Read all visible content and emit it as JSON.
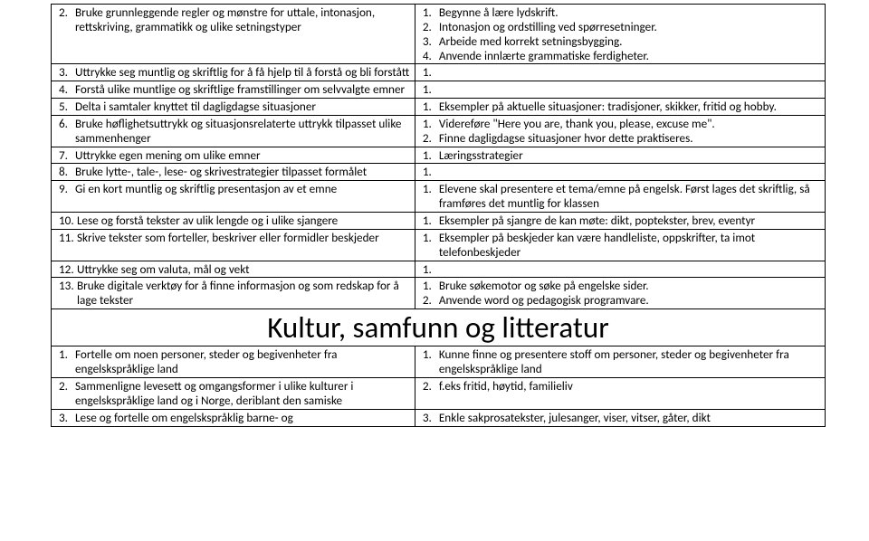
{
  "rows": [
    {
      "left": [
        {
          "n": "2.",
          "t": "Bruke grunnleggende regler og mønstre for uttale, intonasjon, rettskriving, grammatikk og ulike setningstyper"
        }
      ],
      "right": [
        {
          "n": "1.",
          "t": "Begynne å lære lydskrift."
        },
        {
          "n": "2.",
          "t": "Intonasjon og ordstilling ved spørresetninger."
        },
        {
          "n": "3.",
          "t": "Arbeide med korrekt setningsbygging."
        },
        {
          "n": "4.",
          "t": "Anvende innlærte grammatiske ferdigheter."
        }
      ]
    },
    {
      "left": [
        {
          "n": "3.",
          "t": "Uttrykke seg muntlig og skriftlig for å få hjelp til å forstå og bli forstått"
        }
      ],
      "right": [
        {
          "n": "1.",
          "t": ""
        }
      ]
    },
    {
      "left": [
        {
          "n": "4.",
          "t": "Forstå ulike muntlige og skriftlige framstillinger om selvvalgte emner"
        }
      ],
      "right": [
        {
          "n": "1.",
          "t": ""
        }
      ]
    },
    {
      "left": [
        {
          "n": "5.",
          "t": "Delta i samtaler knyttet til dagligdagse situasjoner"
        }
      ],
      "right": [
        {
          "n": "1.",
          "t": "Eksempler på aktuelle situasjoner: tradisjoner, skikker, fritid og hobby."
        }
      ]
    },
    {
      "left": [
        {
          "n": "6.",
          "t": "Bruke høflighetsuttrykk og situasjonsrelaterte uttrykk tilpasset ulike sammenhenger"
        }
      ],
      "right": [
        {
          "n": "1.",
          "t": "Videreføre \"Here you are, thank you, please, excuse me\"."
        },
        {
          "n": "2.",
          "t": " Finne dagligdagse situasjoner hvor dette praktiseres."
        }
      ]
    },
    {
      "left": [
        {
          "n": "7.",
          "t": "Uttrykke egen mening om ulike emner"
        }
      ],
      "right": [
        {
          "n": "1.",
          "t": "Læringsstrategier"
        }
      ]
    },
    {
      "left": [
        {
          "n": "8.",
          "t": "Bruke lytte-, tale-, lese- og skrivestrategier tilpasset formålet"
        }
      ],
      "right": [
        {
          "n": "1.",
          "t": ""
        }
      ]
    },
    {
      "left": [
        {
          "n": "9.",
          "t": "Gi en kort muntlig og skriftlig presentasjon av et emne"
        }
      ],
      "right": [
        {
          "n": "1.",
          "t": "Elevene skal presentere et tema/emne på engelsk. Først lages det skriftlig, så framføres det muntlig for klassen"
        }
      ]
    },
    {
      "left": [
        {
          "n": "10.",
          "t": "Lese og forstå tekster av ulik lengde og i ulike sjangere"
        }
      ],
      "right": [
        {
          "n": "1.",
          "t": "Eksempler på sjangre de kan møte: dikt, poptekster, brev, eventyr"
        }
      ]
    },
    {
      "left": [
        {
          "n": "11.",
          "t": "Skrive tekster som forteller, beskriver eller formidler beskjeder"
        }
      ],
      "right": [
        {
          "n": "1.",
          "t": "Eksempler på beskjeder kan være handleliste, oppskrifter, ta imot telefonbeskjeder"
        }
      ]
    },
    {
      "left": [
        {
          "n": "12.",
          "t": "Uttrykke seg om valuta, mål og vekt"
        }
      ],
      "right": [
        {
          "n": "1.",
          "t": ""
        }
      ]
    },
    {
      "left": [
        {
          "n": "13.",
          "t": "Bruke digitale verktøy for å finne informasjon og som redskap for å lage tekster"
        }
      ],
      "right": [
        {
          "n": "1.",
          "t": "Bruke søkemotor og søke på engelske sider."
        },
        {
          "n": "2.",
          "t": "Anvende word og pedagogisk programvare."
        }
      ]
    }
  ],
  "heading": "Kultur, samfunn og litteratur",
  "rows2": [
    {
      "left": [
        {
          "n": "1.",
          "t": "Fortelle om noen personer, steder og begivenheter fra engelskspråklige land"
        }
      ],
      "right": [
        {
          "n": "1.",
          "t": "Kunne finne og presentere stoff om personer, steder og begivenheter fra engelskspråklige land"
        }
      ]
    },
    {
      "left": [
        {
          "n": "2.",
          "t": "Sammenligne levesett og omgangsformer i ulike kulturer i engelskspråklige land og i Norge, deriblant den samiske"
        }
      ],
      "right": [
        {
          "n": "2.",
          "t": "f.eks fritid, høytid, familieliv"
        }
      ]
    },
    {
      "left": [
        {
          "n": "3.",
          "t": "Lese og fortelle om engelskspråklig barne- og"
        }
      ],
      "right": [
        {
          "n": "3.",
          "t": "Enkle sakprosatekster, julesanger, viser, vitser, gåter, dikt"
        }
      ]
    }
  ]
}
